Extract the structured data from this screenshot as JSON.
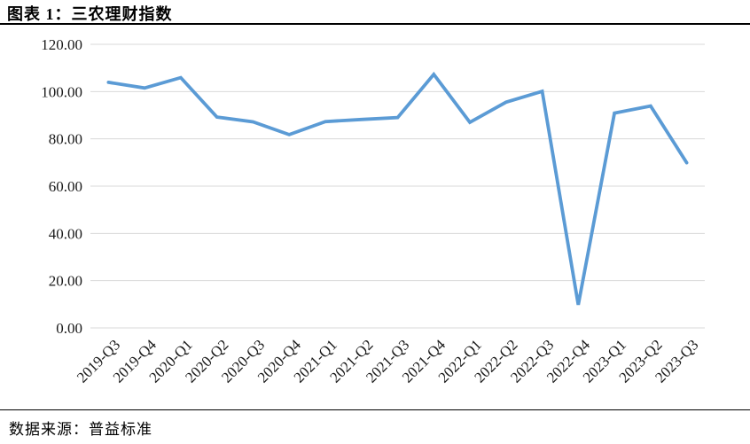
{
  "header": {
    "title": "图表 1：三农理财指数"
  },
  "footer": {
    "source": "数据来源：普益标准"
  },
  "chart_data": {
    "type": "line",
    "title": "图表 1：三农理财指数",
    "categories": [
      "2019-Q3",
      "2019-Q4",
      "2020-Q1",
      "2020-Q2",
      "2020-Q3",
      "2020-Q4",
      "2021-Q1",
      "2021-Q2",
      "2021-Q3",
      "2021-Q4",
      "2022-Q1",
      "2022-Q2",
      "2022-Q3",
      "2022-Q4",
      "2023-Q1",
      "2023-Q2",
      "2023-Q3"
    ],
    "values": [
      103.9,
      101.5,
      105.9,
      89.2,
      87.2,
      81.8,
      87.3,
      88.2,
      89.0,
      107.3,
      87.0,
      95.5,
      100.1,
      9.8,
      90.9,
      93.9,
      69.9
    ],
    "xlabel": "",
    "ylabel": "",
    "ylim": [
      0,
      120
    ],
    "yticks": [
      0,
      20,
      40,
      60,
      80,
      100,
      120
    ],
    "ytick_labels": [
      "0.00",
      "20.00",
      "40.00",
      "60.00",
      "80.00",
      "100.00",
      "120.00"
    ],
    "xtick_rotation_deg": 45,
    "grid": true,
    "legend": "none",
    "line_color": "#5B9BD5",
    "grid_color": "#D9D9D9",
    "axis_text_color": "#1a1a1a"
  }
}
